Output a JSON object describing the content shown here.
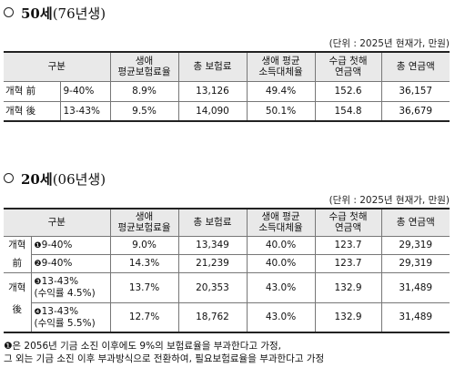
{
  "section1": {
    "bullet": "○",
    "title_bold": "50세",
    "title_rest": "(76년생)",
    "unit": "(단위 : 2025년 현재가, 만원)",
    "headers": [
      "구분",
      "생애 평균보험료율",
      "총 보험료",
      "생애 평균 소득대체율",
      "수급 첫해 연금액",
      "총 연금액"
    ],
    "rows": [
      {
        "group": "개혁 前",
        "range": "9-40%",
        "rate": "8.9%",
        "premium": "13,126",
        "replacement": "49.4%",
        "first_year": "152.6",
        "total": "36,157"
      },
      {
        "group": "개혁 後",
        "range": "13-43%",
        "rate": "9.5%",
        "premium": "14,090",
        "replacement": "50.1%",
        "first_year": "154.8",
        "total": "36,679"
      }
    ]
  },
  "section2": {
    "bullet": "○",
    "title_bold": "20세",
    "title_rest": "(06년생)",
    "unit": "(단위 : 2025년 현재가, 만원)",
    "headers": [
      "구분",
      "생애 평균보험료율",
      "총 보험료",
      "생애 평균 소득대체율",
      "수급 첫해 연금액",
      "총 연금액"
    ],
    "group_before": [
      "개혁",
      "前"
    ],
    "group_after": [
      "개혁",
      "後"
    ],
    "rows": [
      {
        "mark": "❶",
        "range": "9-40%",
        "range2": "",
        "rate": "9.0%",
        "premium": "13,349",
        "replacement": "40.0%",
        "first_year": "123.7",
        "total": "29,319"
      },
      {
        "mark": "❷",
        "range": "9-40%",
        "range2": "",
        "rate": "14.3%",
        "premium": "21,239",
        "replacement": "40.0%",
        "first_year": "123.7",
        "total": "29,319"
      },
      {
        "mark": "❸",
        "range": "13-43%",
        "range2": "(수익률 4.5%)",
        "rate": "13.7%",
        "premium": "20,353",
        "replacement": "43.0%",
        "first_year": "132.9",
        "total": "31,489"
      },
      {
        "mark": "❹",
        "range": "13-43%",
        "range2": "(수익률 5.5%)",
        "rate": "12.7%",
        "premium": "18,762",
        "replacement": "43.0%",
        "first_year": "132.9",
        "total": "31,489"
      }
    ]
  },
  "notes": {
    "mark": "❶",
    "line1": "은 2056년 기금 소진 이후에도 9%의 보험료율을 부과한다고 가정,",
    "line2": "그 외는 기금 소진 이후 부과방식으로 전환하여, 필요보험료율을 부과한다고 가정"
  }
}
